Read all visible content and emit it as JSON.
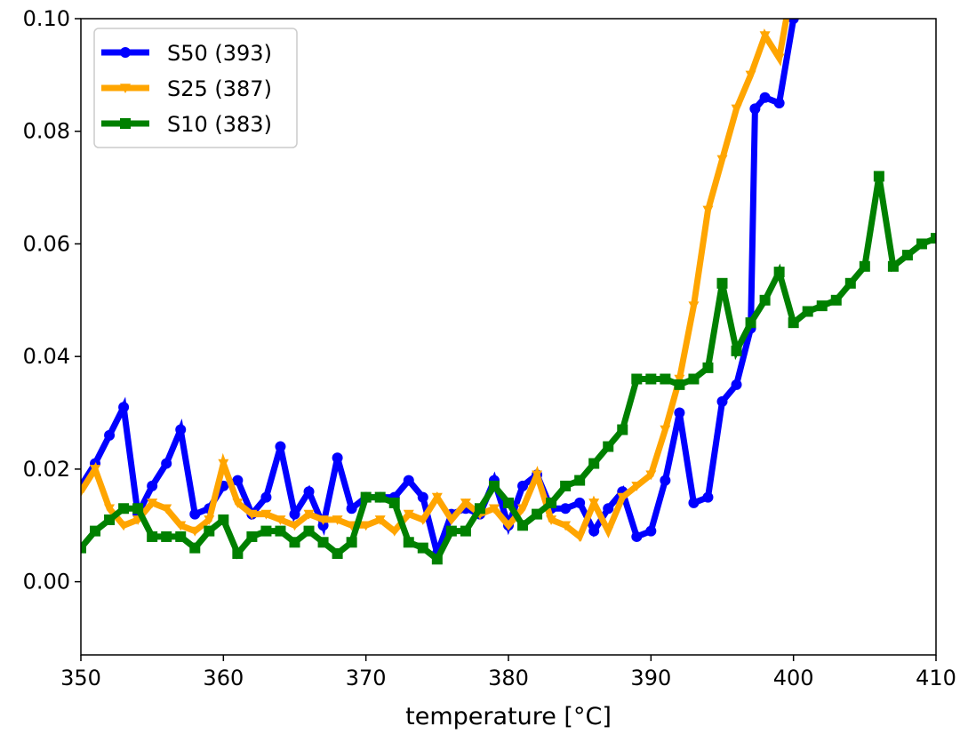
{
  "chart_data": {
    "type": "line",
    "title": "",
    "xlabel": "temperature [°C]",
    "ylabel": "",
    "xlim": [
      350,
      410
    ],
    "ylim": [
      -0.013,
      0.1
    ],
    "xticks": [
      350,
      360,
      370,
      380,
      390,
      400,
      410
    ],
    "xtick_labels": [
      "350",
      "360",
      "370",
      "380",
      "390",
      "400",
      "410"
    ],
    "yticks": [
      0.0,
      0.02,
      0.04,
      0.06,
      0.08,
      0.1
    ],
    "ytick_labels": [
      "0.00",
      "0.02",
      "0.04",
      "0.06",
      "0.08",
      "0.10"
    ],
    "grid": false,
    "legend_position": "top-left",
    "series": [
      {
        "name": "S50 (393)",
        "color": "#0000ff",
        "marker": "circle",
        "x": [
          350,
          351,
          352,
          353,
          354,
          355,
          356,
          357,
          358,
          359,
          360,
          361,
          362,
          363,
          364,
          365,
          366,
          367,
          368,
          369,
          370,
          371,
          372,
          373,
          374,
          375,
          376,
          377,
          378,
          379,
          380,
          381,
          382,
          383,
          384,
          385,
          386,
          387,
          388,
          389,
          390,
          391,
          392,
          393,
          394,
          395,
          396,
          397,
          397.3,
          398,
          399,
          400
        ],
        "y": [
          0.017,
          0.021,
          0.026,
          0.031,
          0.012,
          0.017,
          0.021,
          0.027,
          0.012,
          0.013,
          0.017,
          0.018,
          0.012,
          0.015,
          0.024,
          0.012,
          0.016,
          0.01,
          0.022,
          0.013,
          0.015,
          0.015,
          0.015,
          0.018,
          0.015,
          0.005,
          0.012,
          0.013,
          0.012,
          0.018,
          0.01,
          0.017,
          0.019,
          0.013,
          0.013,
          0.014,
          0.009,
          0.013,
          0.016,
          0.008,
          0.009,
          0.018,
          0.03,
          0.014,
          0.015,
          0.032,
          0.035,
          0.045,
          0.084,
          0.086,
          0.085,
          0.1
        ]
      },
      {
        "name": "S25 (387)",
        "color": "#ffa500",
        "marker": "triangle",
        "x": [
          350,
          351,
          352,
          353,
          354,
          355,
          356,
          357,
          358,
          359,
          360,
          361,
          362,
          363,
          364,
          365,
          366,
          367,
          368,
          369,
          370,
          371,
          372,
          373,
          374,
          375,
          376,
          377,
          378,
          379,
          380,
          381,
          382,
          383,
          384,
          385,
          386,
          387,
          388,
          389,
          390,
          391,
          392,
          393,
          394,
          395,
          396,
          397,
          398,
          399,
          399.5
        ],
        "y": [
          0.016,
          0.02,
          0.013,
          0.01,
          0.011,
          0.014,
          0.013,
          0.01,
          0.009,
          0.011,
          0.021,
          0.014,
          0.012,
          0.012,
          0.011,
          0.01,
          0.012,
          0.011,
          0.011,
          0.01,
          0.01,
          0.011,
          0.009,
          0.012,
          0.011,
          0.015,
          0.011,
          0.014,
          0.012,
          0.013,
          0.01,
          0.013,
          0.019,
          0.011,
          0.01,
          0.008,
          0.014,
          0.009,
          0.015,
          0.017,
          0.019,
          0.027,
          0.036,
          0.049,
          0.066,
          0.075,
          0.084,
          0.09,
          0.097,
          0.093,
          0.1
        ]
      },
      {
        "name": "S10 (383)",
        "color": "#008000",
        "marker": "square",
        "x": [
          350,
          351,
          352,
          353,
          354,
          355,
          356,
          357,
          358,
          359,
          360,
          361,
          362,
          363,
          364,
          365,
          366,
          367,
          368,
          369,
          370,
          371,
          372,
          373,
          374,
          375,
          376,
          377,
          378,
          379,
          380,
          381,
          382,
          383,
          384,
          385,
          386,
          387,
          388,
          389,
          390,
          391,
          392,
          393,
          394,
          395,
          396,
          397,
          398,
          399,
          400,
          401,
          402,
          403,
          404,
          405,
          406,
          407,
          408,
          409,
          410
        ],
        "y": [
          0.006,
          0.009,
          0.011,
          0.013,
          0.013,
          0.008,
          0.008,
          0.008,
          0.006,
          0.009,
          0.011,
          0.005,
          0.008,
          0.009,
          0.009,
          0.007,
          0.009,
          0.007,
          0.005,
          0.007,
          0.015,
          0.015,
          0.014,
          0.007,
          0.006,
          0.004,
          0.009,
          0.009,
          0.013,
          0.017,
          0.014,
          0.01,
          0.012,
          0.014,
          0.017,
          0.018,
          0.021,
          0.024,
          0.027,
          0.036,
          0.036,
          0.036,
          0.035,
          0.036,
          0.038,
          0.053,
          0.041,
          0.046,
          0.05,
          0.055,
          0.046,
          0.048,
          0.049,
          0.05,
          0.053,
          0.056,
          0.072,
          0.056,
          0.058,
          0.06,
          0.061
        ]
      }
    ]
  }
}
